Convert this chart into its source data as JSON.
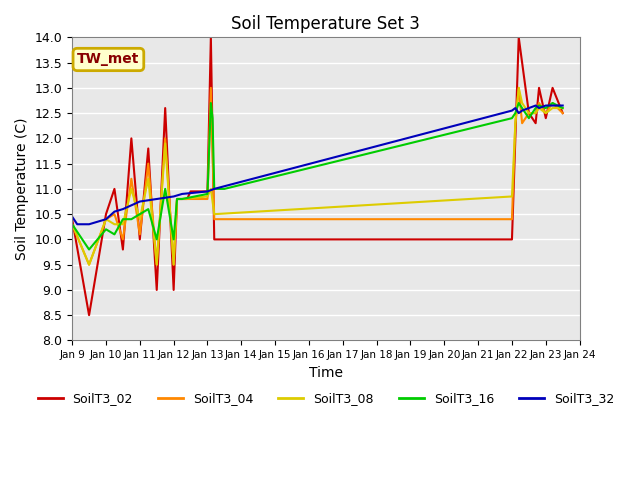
{
  "title": "Soil Temperature Set 3",
  "xlabel": "Time",
  "ylabel": "Soil Temperature (C)",
  "ylim": [
    8.0,
    14.0
  ],
  "yticks": [
    8.0,
    8.5,
    9.0,
    9.5,
    10.0,
    10.5,
    11.0,
    11.5,
    12.0,
    12.5,
    13.0,
    13.5,
    14.0
  ],
  "xtick_labels": [
    "Jan 9",
    "Jan 10",
    "Jan 11",
    "Jan 12",
    "Jan 13",
    "Jan 14",
    "Jan 15",
    "Jan 16",
    "Jan 17",
    "Jan 18",
    "Jan 19",
    "Jan 20",
    "Jan 21",
    "Jan 22",
    "Jan 23",
    "Jan 24"
  ],
  "annotation_text": "TW_met",
  "annotation_color": "#880000",
  "annotation_bg": "#ffffcc",
  "annotation_border": "#ccaa00",
  "background_color": "#e8e8e8",
  "series": [
    {
      "label": "SoilT3_02",
      "color": "#cc0000",
      "x": [
        0,
        0.5,
        1.0,
        1.25,
        1.5,
        1.75,
        2.0,
        2.25,
        2.5,
        2.75,
        3.0,
        3.1,
        3.25,
        3.4,
        3.5,
        4.0,
        4.1,
        4.2,
        13.0,
        13.1,
        13.2,
        13.3,
        13.5,
        13.7,
        13.8,
        14.0,
        14.2,
        14.5
      ],
      "y": [
        10.4,
        8.5,
        10.5,
        11.0,
        9.8,
        12.0,
        10.0,
        11.8,
        9.0,
        12.6,
        9.0,
        10.8,
        10.8,
        10.8,
        10.95,
        10.95,
        14.0,
        10.0,
        10.0,
        12.0,
        14.0,
        13.5,
        12.5,
        12.3,
        13.0,
        12.4,
        13.0,
        12.5
      ]
    },
    {
      "label": "SoilT3_04",
      "color": "#ff8800",
      "x": [
        0,
        0.5,
        1.0,
        1.25,
        1.5,
        1.75,
        2.0,
        2.25,
        2.5,
        2.75,
        3.0,
        3.1,
        3.25,
        4.0,
        4.1,
        4.2,
        13.0,
        13.1,
        13.2,
        13.3,
        13.5,
        13.7,
        13.8,
        14.0,
        14.2,
        14.5
      ],
      "y": [
        10.3,
        9.5,
        10.4,
        10.5,
        10.0,
        11.2,
        10.1,
        11.5,
        9.5,
        12.0,
        9.5,
        10.8,
        10.8,
        10.8,
        13.0,
        10.4,
        10.4,
        12.3,
        13.0,
        12.3,
        12.5,
        12.5,
        12.7,
        12.5,
        12.7,
        12.5
      ]
    },
    {
      "label": "SoilT3_08",
      "color": "#ddcc00",
      "x": [
        0,
        0.5,
        1.0,
        1.25,
        1.5,
        1.75,
        2.0,
        2.25,
        2.5,
        2.75,
        3.0,
        3.1,
        3.25,
        4.0,
        4.1,
        4.2,
        13.0,
        13.1,
        13.2,
        13.3,
        13.5,
        13.7,
        13.8,
        14.0,
        14.2,
        14.5
      ],
      "y": [
        10.3,
        9.5,
        10.4,
        10.3,
        10.3,
        11.0,
        10.4,
        11.2,
        9.5,
        11.9,
        9.5,
        10.8,
        10.8,
        10.85,
        11.0,
        10.5,
        10.85,
        12.3,
        13.0,
        12.7,
        12.5,
        12.5,
        12.6,
        12.5,
        12.6,
        12.6
      ]
    },
    {
      "label": "SoilT3_16",
      "color": "#00cc00",
      "x": [
        0,
        0.5,
        1.0,
        1.25,
        1.5,
        1.75,
        2.0,
        2.25,
        2.5,
        2.75,
        3.0,
        3.1,
        3.25,
        4.0,
        4.1,
        4.15,
        4.2,
        4.5,
        13.0,
        13.1,
        13.2,
        13.3,
        13.5,
        13.7,
        13.8,
        14.0,
        14.2,
        14.5
      ],
      "y": [
        10.3,
        9.8,
        10.2,
        10.1,
        10.4,
        10.4,
        10.5,
        10.6,
        10.0,
        11.0,
        10.0,
        10.8,
        10.8,
        10.9,
        12.7,
        12.4,
        11.0,
        11.0,
        12.4,
        12.5,
        12.7,
        12.6,
        12.4,
        12.6,
        12.65,
        12.6,
        12.7,
        12.6
      ]
    },
    {
      "label": "SoilT3_32",
      "color": "#0000bb",
      "x": [
        0,
        0.15,
        0.3,
        0.5,
        1.0,
        1.25,
        1.5,
        2.0,
        2.5,
        3.0,
        3.25,
        4.0,
        4.2,
        13.0,
        13.1,
        13.2,
        13.3,
        13.5,
        13.7,
        13.8,
        14.0,
        14.2,
        14.5
      ],
      "y": [
        10.45,
        10.3,
        10.3,
        10.3,
        10.4,
        10.55,
        10.6,
        10.75,
        10.8,
        10.85,
        10.9,
        10.95,
        11.0,
        12.55,
        12.6,
        12.5,
        12.55,
        12.6,
        12.65,
        12.6,
        12.65,
        12.65,
        12.65
      ]
    }
  ],
  "legend_labels": [
    "SoilT3_02",
    "SoilT3_04",
    "SoilT3_08",
    "SoilT3_16",
    "SoilT3_32"
  ],
  "legend_colors": [
    "#cc0000",
    "#ff8800",
    "#ddcc00",
    "#00cc00",
    "#0000bb"
  ]
}
